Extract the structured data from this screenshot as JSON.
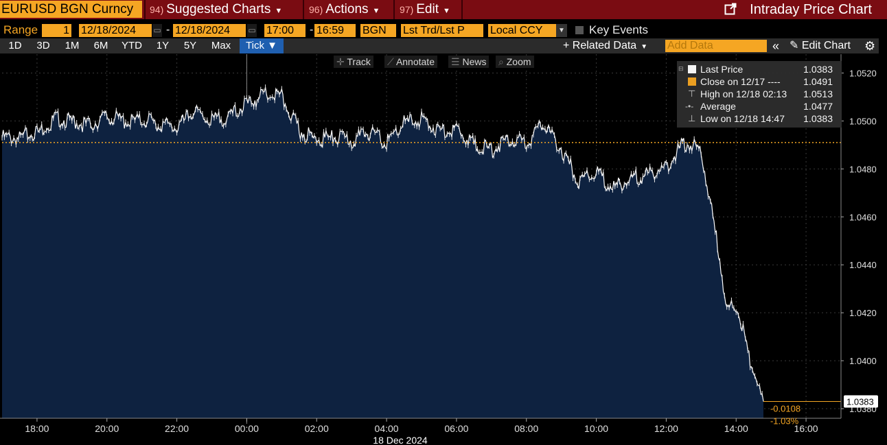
{
  "header": {
    "ticker": "EURUSD BGN Curncy",
    "menus": [
      {
        "num": "94)",
        "label": "Suggested Charts"
      },
      {
        "num": "96)",
        "label": "Actions"
      },
      {
        "num": "97)",
        "label": "Edit"
      }
    ],
    "title": "Intraday Price Chart"
  },
  "range_row": {
    "range_label": "Range",
    "period": "1",
    "start_date": "12/18/2024",
    "end_date": "12/18/2024",
    "start_time": "17:00",
    "end_time": "16:59",
    "source": "BGN",
    "field": "Lst Trd/Lst P",
    "currency": "Local CCY",
    "key_events": "Key Events"
  },
  "tabs": [
    "1D",
    "3D",
    "1M",
    "6M",
    "YTD",
    "1Y",
    "5Y",
    "Max",
    "Tick ▼"
  ],
  "active_tab": "Tick ▼",
  "right_tools": {
    "related_data": "+ Related Data",
    "add_data_placeholder": "Add Data",
    "edit_chart": "Edit Chart"
  },
  "chart_tools": [
    "Track",
    "Annotate",
    "News",
    "Zoom"
  ],
  "legend": [
    {
      "name": "Last Price",
      "value": "1.0383",
      "color": "#ffffff"
    },
    {
      "name": "Close on 12/17 ----",
      "value": "1.0491",
      "color": "#f5a623"
    },
    {
      "name": "High on 12/18 02:13",
      "value": "1.0513",
      "color": "#cccccc"
    },
    {
      "name": "Average",
      "value": "1.0477",
      "color": "#cccccc"
    },
    {
      "name": "Low on 12/18 14:47",
      "value": "1.0383",
      "color": "#cccccc"
    }
  ],
  "last_price_tag": "1.0383",
  "change_abs": "-0.0108",
  "change_pct": "-1.03%",
  "date_label": "18 Dec 2024",
  "colors": {
    "accent": "#f5a623",
    "header": "#7a0c12",
    "area": "#0e2240",
    "active_tab": "#1f5fb0"
  },
  "chart_data": {
    "type": "area",
    "title": "Intraday Price Chart",
    "x_tick_labels": [
      "18:00",
      "20:00",
      "22:00",
      "00:00",
      "02:00",
      "04:00",
      "06:00",
      "08:00",
      "10:00",
      "12:00",
      "14:00",
      "16:00"
    ],
    "y_tick_labels": [
      "1.0520",
      "1.0500",
      "1.0480",
      "1.0460",
      "1.0440",
      "1.0420",
      "1.0400",
      "1.0380"
    ],
    "ylim": [
      1.0376,
      1.0525
    ],
    "previous_close": 1.0491,
    "series": [
      {
        "name": "Last Price",
        "x_hours_since_1700": [
          0,
          0.5,
          1,
          1.5,
          2,
          2.5,
          3,
          3.5,
          4,
          4.5,
          5,
          5.5,
          6,
          6.5,
          7,
          7.5,
          8,
          8.5,
          9,
          9.5,
          10,
          10.5,
          11,
          11.5,
          12,
          12.5,
          13,
          13.5,
          14,
          14.5,
          15,
          15.5,
          16,
          16.5,
          17,
          17.5,
          18,
          18.5,
          19,
          19.5,
          20,
          20.5,
          20.7,
          21.1,
          21.4,
          21.6,
          21.78
        ],
        "values": [
          1.0493,
          1.0493,
          1.0495,
          1.0501,
          1.05,
          1.0498,
          1.0502,
          1.05,
          1.05,
          1.0499,
          1.0497,
          1.0504,
          1.05,
          1.0502,
          1.0507,
          1.0511,
          1.051,
          1.0496,
          1.0492,
          1.0493,
          1.0492,
          1.0495,
          1.0491,
          1.0499,
          1.0501,
          1.0496,
          1.0497,
          1.049,
          1.0488,
          1.0493,
          1.049,
          1.0499,
          1.0488,
          1.0475,
          1.0478,
          1.0472,
          1.0476,
          1.0478,
          1.0481,
          1.0491,
          1.0488,
          1.0445,
          1.0425,
          1.0418,
          1.04,
          1.0388,
          1.0383
        ]
      }
    ]
  }
}
